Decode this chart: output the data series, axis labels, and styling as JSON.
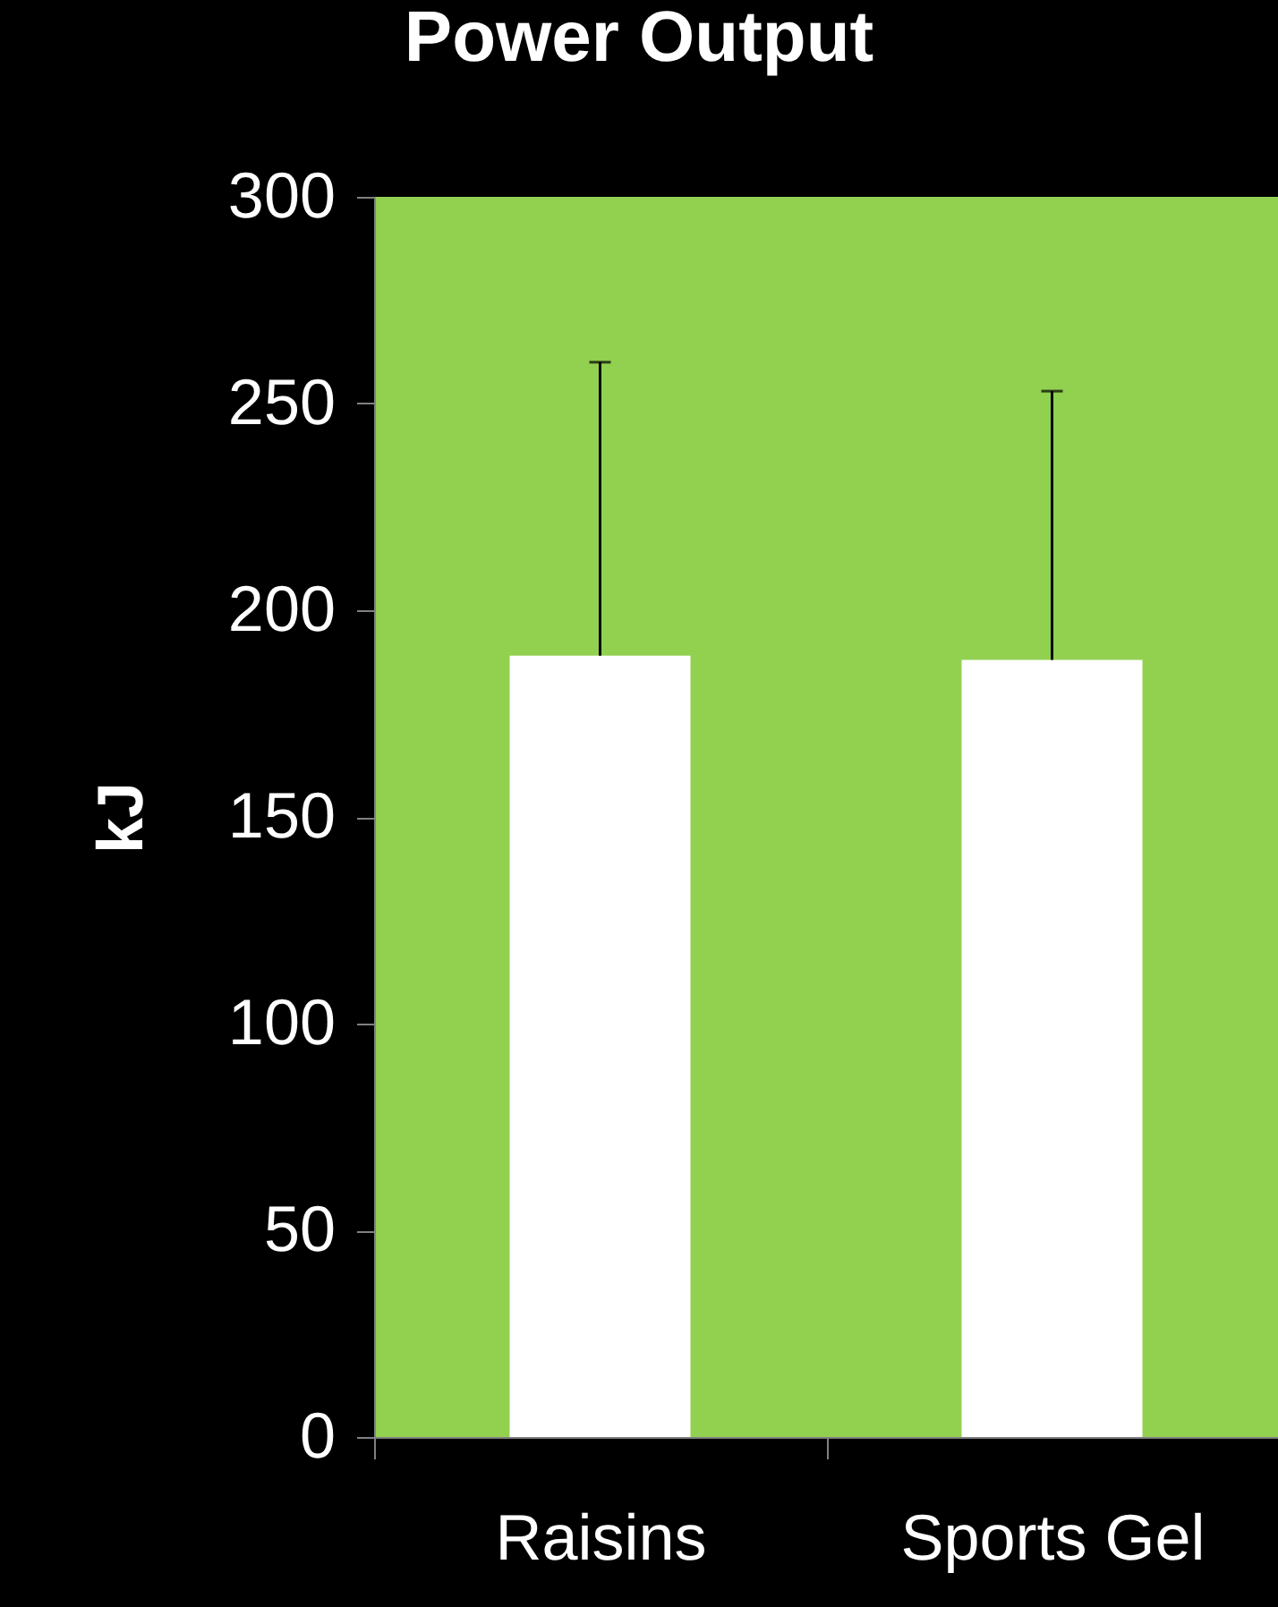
{
  "chart_data": {
    "type": "bar",
    "title": "Power Output",
    "ylabel": "kJ",
    "categories": [
      "Raisins",
      "Sports Gel"
    ],
    "values": [
      189,
      188
    ],
    "errors": [
      [
        189,
        260
      ],
      [
        188,
        253
      ]
    ],
    "color": "#ffffff",
    "ylim": [
      0,
      300
    ],
    "yticks": [
      0,
      50,
      100,
      150,
      200,
      250,
      300
    ],
    "grid": false
  }
}
